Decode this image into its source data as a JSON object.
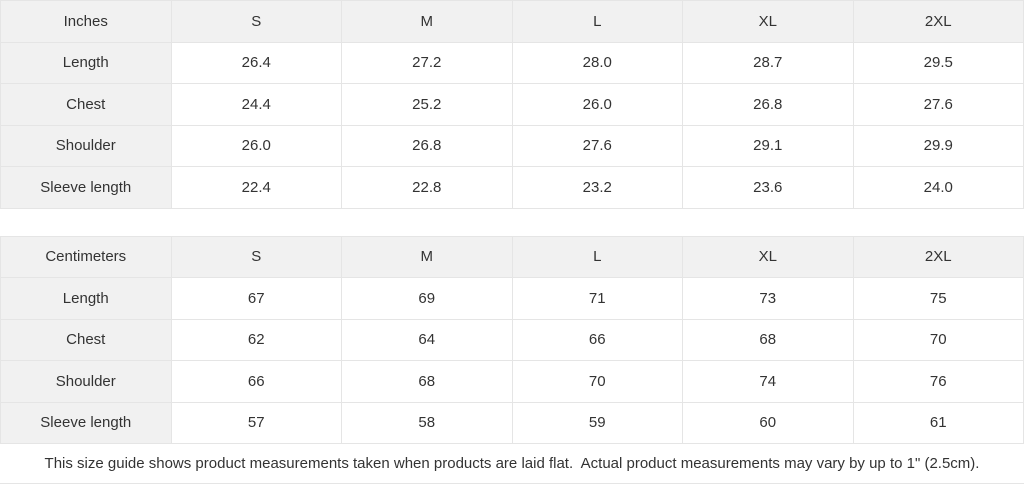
{
  "colors": {
    "header_bg": "#f1f1f1",
    "border": "#e5e5e5",
    "text": "#333333"
  },
  "tables": [
    {
      "unit_label": "Inches",
      "sizes": [
        "S",
        "M",
        "L",
        "XL",
        "2XL"
      ],
      "rows": [
        {
          "label": "Length",
          "values": [
            "26.4",
            "27.2",
            "28.0",
            "28.7",
            "29.5"
          ]
        },
        {
          "label": "Chest",
          "values": [
            "24.4",
            "25.2",
            "26.0",
            "26.8",
            "27.6"
          ]
        },
        {
          "label": "Shoulder",
          "values": [
            "26.0",
            "26.8",
            "27.6",
            "29.1",
            "29.9"
          ]
        },
        {
          "label": "Sleeve length",
          "values": [
            "22.4",
            "22.8",
            "23.2",
            "23.6",
            "24.0"
          ]
        }
      ]
    },
    {
      "unit_label": "Centimeters",
      "sizes": [
        "S",
        "M",
        "L",
        "XL",
        "2XL"
      ],
      "rows": [
        {
          "label": "Length",
          "values": [
            "67",
            "69",
            "71",
            "73",
            "75"
          ]
        },
        {
          "label": "Chest",
          "values": [
            "62",
            "64",
            "66",
            "68",
            "70"
          ]
        },
        {
          "label": "Shoulder",
          "values": [
            "66",
            "68",
            "70",
            "74",
            "76"
          ]
        },
        {
          "label": "Sleeve length",
          "values": [
            "57",
            "58",
            "59",
            "60",
            "61"
          ]
        }
      ]
    }
  ],
  "footer": {
    "note": "This size guide shows product measurements taken when products are laid flat.  Actual product measurements may vary by up to 1\" (2.5cm)."
  }
}
